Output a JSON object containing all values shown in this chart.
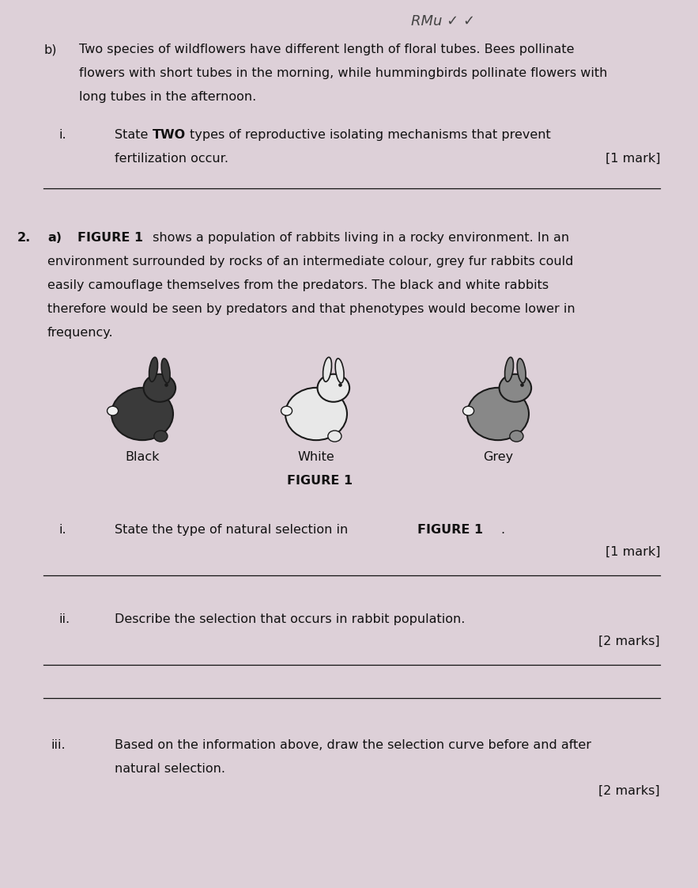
{
  "bg_color": "#ddd0d8",
  "page_width": 8.83,
  "page_height": 11.22,
  "dpi": 100,
  "b_label": "b)",
  "b_body": "Two species of wildflowers have different length of floral tubes. Bees pollinate flowers with short tubes in the morning, while hummingbirds pollinate flowers with long tubes in the afternoon.",
  "bi_label": "i.",
  "bi_q_plain1": "State ",
  "bi_q_bold": "TWO",
  "bi_q_plain2": " types of reproductive isolating mechanisms that prevent fertilization occur.",
  "bi_mark": "[1 mark]",
  "q2_num": "2.",
  "q2a_label": "a)",
  "q2a_bold": "FIGURE 1",
  "q2a_body": " shows a population of rabbits living in a rocky environment. In an environment surrounded by rocks of an intermediate colour, grey fur rabbits could easily camouflage themselves from the predators. The black and white rabbits therefore would be seen by predators and that phenotypes would become lower in frequency.",
  "rabbit_labels": [
    "Black",
    "White",
    "Grey"
  ],
  "rabbit_colors": [
    "#3a3a3a",
    "#e8e8e8",
    "#888888"
  ],
  "figure_label": "FIGURE 1",
  "qi_label": "i.",
  "qi_plain": "State the type of natural selection in ",
  "qi_bold": "FIGURE 1",
  "qi_end": ".",
  "qi_mark": "[1 mark]",
  "qii_label": "ii.",
  "qii_text": "Describe the selection that occurs in rabbit population.",
  "qii_mark": "[2 marks]",
  "qiii_label": "iii.",
  "qiii_plain": "Based on the information above, draw the selection curve before and after natural selection.",
  "qiii_mark": "[2 marks]",
  "fs": 11.5,
  "tc": "#111111",
  "lc": "#111111"
}
